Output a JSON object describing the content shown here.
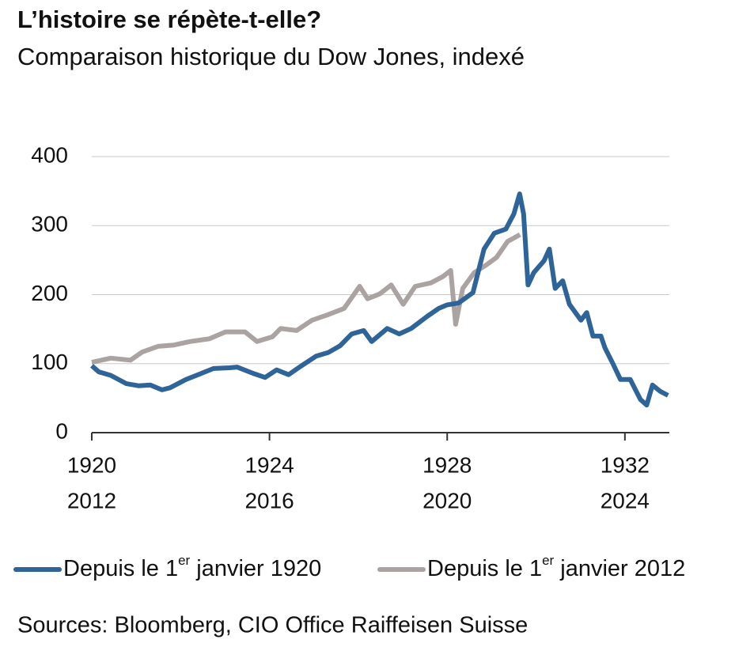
{
  "chart_data": {
    "type": "line",
    "title": "L’histoire se répète-t-elle?",
    "subtitle": "Comparaison historique du Dow Jones, indexé",
    "source": "Sources: Bloomberg, CIO Office Raiffeisen Suisse",
    "xlim": [
      1920,
      1933
    ],
    "xticks": [
      1920,
      1924,
      1928,
      1932
    ],
    "x2lim": [
      2012,
      2025
    ],
    "x2ticks": [
      2012,
      2016,
      2020,
      2024
    ],
    "ylim": [
      0,
      400
    ],
    "yticks": [
      0,
      100,
      200,
      300,
      400
    ],
    "grid": true,
    "series": [
      {
        "name": "Depuis le 1er janvier 1920",
        "color": "#2f6499",
        "x": [
          1920,
          1920.16,
          1920.43,
          1920.78,
          1921.05,
          1921.32,
          1921.58,
          1921.76,
          1922.12,
          1922.47,
          1922.74,
          1923.1,
          1923.27,
          1923.63,
          1923.9,
          1924.16,
          1924.43,
          1924.7,
          1925.05,
          1925.32,
          1925.59,
          1925.85,
          1926.12,
          1926.3,
          1926.65,
          1926.92,
          1927.19,
          1927.54,
          1927.81,
          1927.99,
          1928.26,
          1928.58,
          1928.83,
          1929.06,
          1929.32,
          1929.5,
          1929.63,
          1929.72,
          1929.82,
          1929.95,
          1930.18,
          1930.3,
          1930.43,
          1930.6,
          1930.75,
          1931.01,
          1931.14,
          1931.28,
          1931.46,
          1931.55,
          1931.73,
          1931.9,
          1932.12,
          1932.35,
          1932.49,
          1932.62,
          1932.79,
          1932.97
        ],
        "values": [
          97,
          88,
          83,
          71,
          68,
          69,
          62,
          65,
          77,
          86,
          93,
          94,
          95,
          86,
          80,
          91,
          84,
          96,
          111,
          116,
          126,
          143,
          148,
          132,
          151,
          143,
          151,
          168,
          180,
          185,
          188,
          203,
          266,
          289,
          295,
          317,
          346,
          317,
          214,
          232,
          249,
          266,
          209,
          220,
          186,
          163,
          174,
          140,
          140,
          123,
          100,
          77,
          77,
          48,
          40,
          69,
          60,
          54
        ]
      },
      {
        "name": "Depuis le 1er janvier 2012",
        "color": "#aaa3a1",
        "axis": "x2",
        "x": [
          2012,
          2012.43,
          2012.87,
          2013.14,
          2013.49,
          2013.85,
          2014.21,
          2014.65,
          2015.01,
          2015.45,
          2015.72,
          2016.07,
          2016.25,
          2016.61,
          2016.96,
          2017.32,
          2017.68,
          2018.03,
          2018.21,
          2018.48,
          2018.74,
          2019.01,
          2019.28,
          2019.63,
          2019.9,
          2020.08,
          2020.19,
          2020.35,
          2020.61,
          2020.88,
          2021.11,
          2021.36,
          2021.64
        ],
        "values": [
          102,
          108,
          105,
          117,
          125,
          127,
          132,
          136,
          146,
          146,
          132,
          139,
          151,
          148,
          163,
          171,
          180,
          212,
          194,
          201,
          214,
          186,
          212,
          217,
          226,
          235,
          157,
          209,
          232,
          243,
          254,
          277,
          287
        ]
      }
    ]
  }
}
